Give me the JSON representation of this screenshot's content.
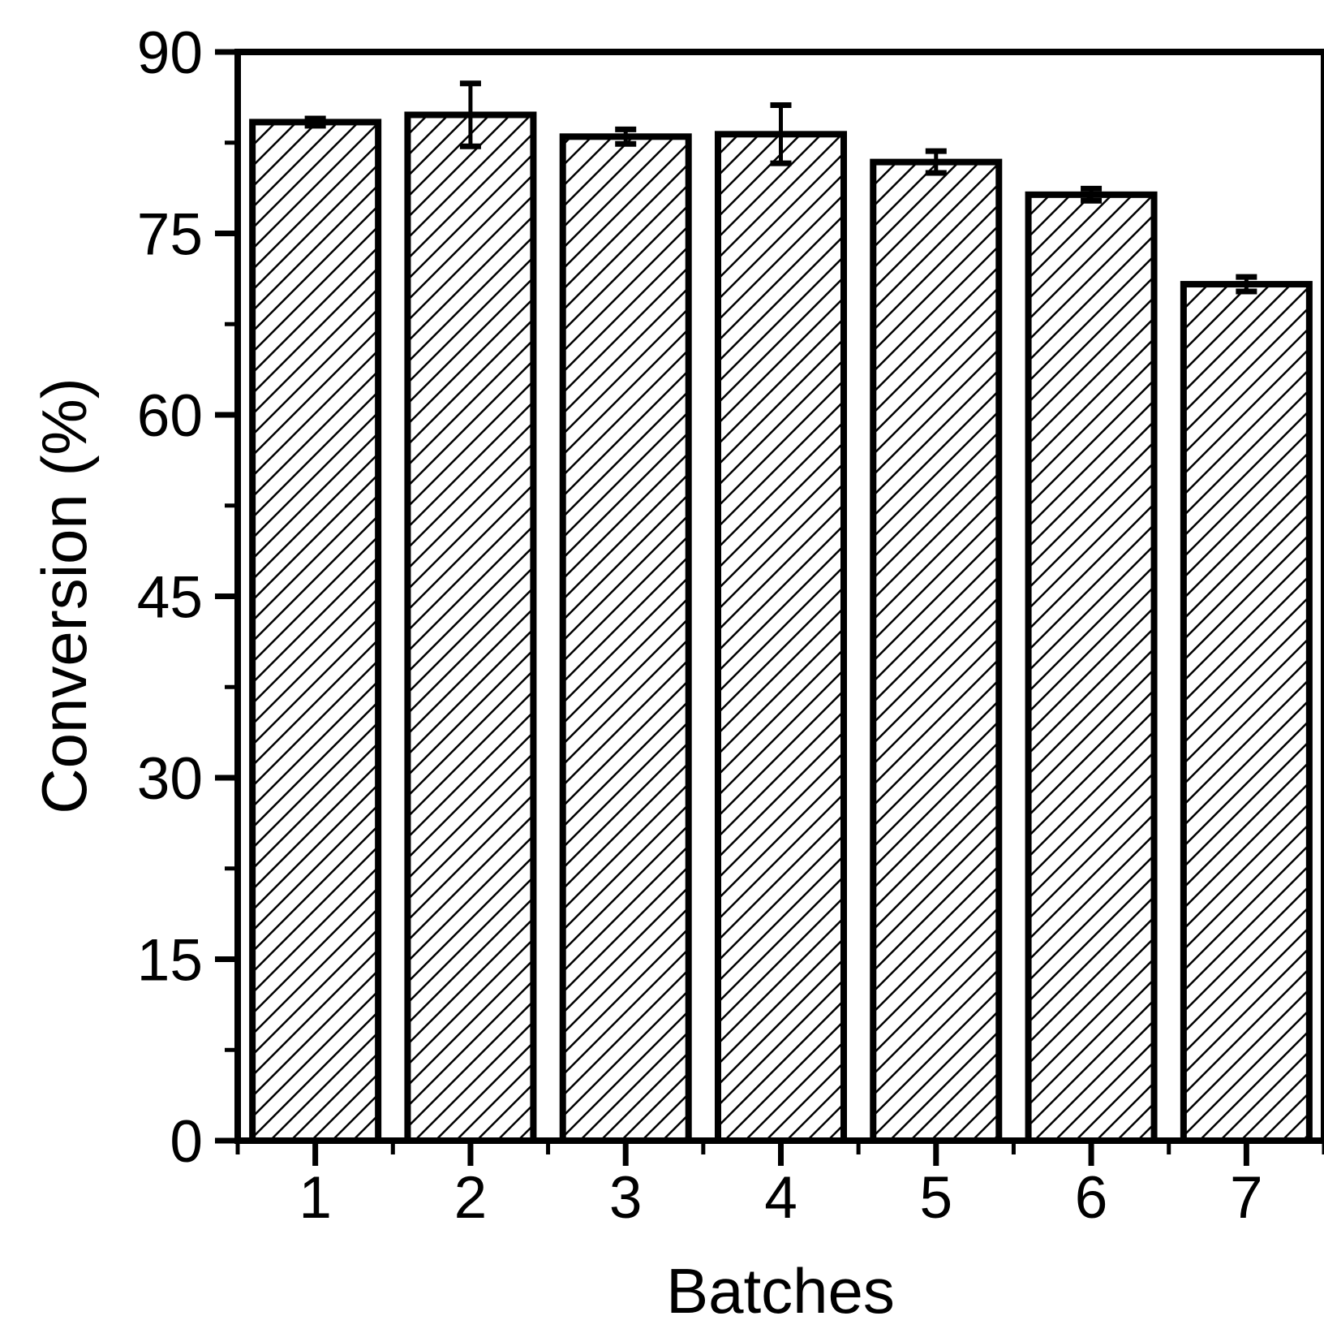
{
  "chart_data": {
    "type": "bar",
    "title": "",
    "xlabel": "Batches",
    "ylabel": "Conversion (%)",
    "categories": [
      "1",
      "2",
      "3",
      "4",
      "5",
      "6",
      "7"
    ],
    "series": [
      {
        "name": "Conversion",
        "values": [
          84.2,
          84.8,
          83.0,
          83.2,
          80.9,
          78.2,
          70.8
        ],
        "error_bars": [
          0.3,
          2.6,
          0.6,
          2.4,
          0.9,
          0.5,
          0.6
        ]
      }
    ],
    "ylim": [
      0,
      90
    ],
    "y_major_ticks": [
      0,
      15,
      30,
      45,
      60,
      75,
      90
    ],
    "y_minor_tick_step": 7.5,
    "x_minor_ticks": "category-boundaries",
    "grid": false,
    "legend": "none",
    "bar_style": {
      "fill": "#ffffff",
      "hatch": "diagonal-forward-slash",
      "stroke": "#000000"
    },
    "axis_color": "#000000",
    "background_color": "#ffffff"
  }
}
